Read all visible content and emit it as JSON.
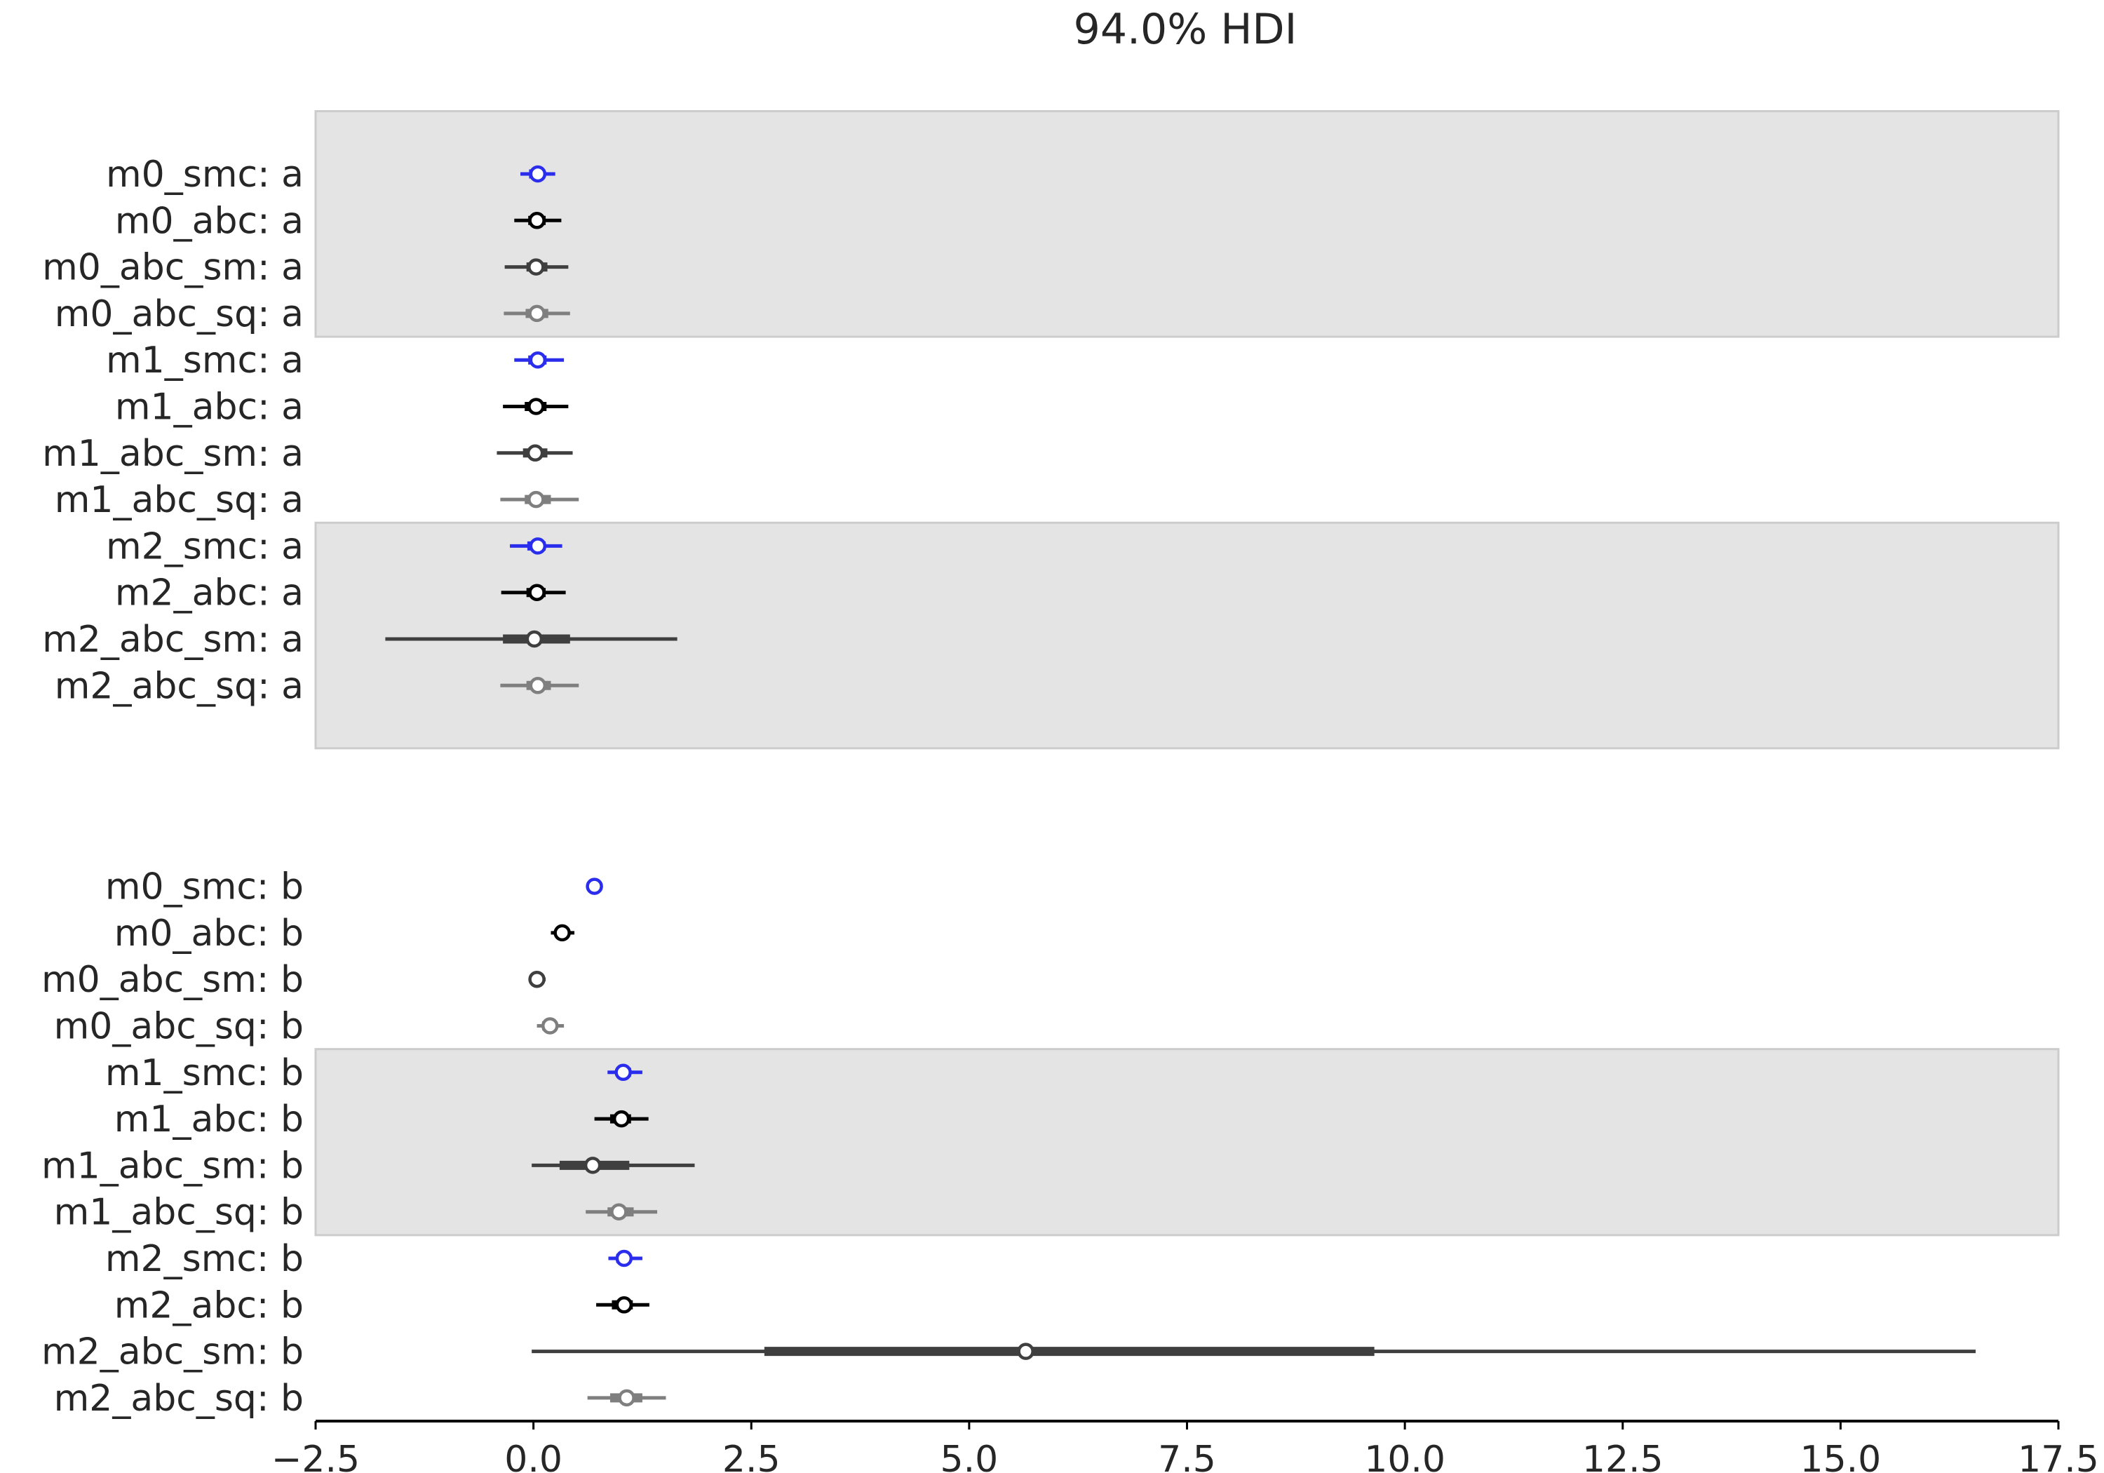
{
  "chart_data": {
    "type": "forest",
    "title": "94.0% HDI",
    "xlim": [
      -2.5,
      17.5
    ],
    "xticks": [
      -2.5,
      0.0,
      2.5,
      5.0,
      7.5,
      10.0,
      12.5,
      15.0,
      17.5
    ],
    "xtick_labels": [
      "−2.5",
      "0.0",
      "2.5",
      "5.0",
      "7.5",
      "10.0",
      "12.5",
      "15.0",
      "17.5"
    ],
    "colors": {
      "smc": "#2a2eec",
      "abc": "#000000",
      "abc_sm": "#3f3f3f",
      "abc_sq": "#7f7f7f",
      "band": "#e4e4e4",
      "band_edge": "#cccccc",
      "axis": "#000000"
    },
    "groups": [
      {
        "parameter": "a",
        "blocks": [
          {
            "shaded": true,
            "rows": [
              {
                "label": "m0_smc: a",
                "model": "smc",
                "median": 0.05,
                "hdi": [
                  -0.15,
                  0.25
                ],
                "iqr": [
                  -0.05,
                  0.12
                ]
              },
              {
                "label": "m0_abc: a",
                "model": "abc",
                "median": 0.04,
                "hdi": [
                  -0.22,
                  0.32
                ],
                "iqr": [
                  -0.06,
                  0.14
                ]
              },
              {
                "label": "m0_abc_sm: a",
                "model": "abc_sm",
                "median": 0.03,
                "hdi": [
                  -0.33,
                  0.4
                ],
                "iqr": [
                  -0.08,
                  0.16
                ]
              },
              {
                "label": "m0_abc_sq: a",
                "model": "abc_sq",
                "median": 0.04,
                "hdi": [
                  -0.34,
                  0.42
                ],
                "iqr": [
                  -0.09,
                  0.17
                ]
              }
            ]
          },
          {
            "shaded": false,
            "rows": [
              {
                "label": "m1_smc: a",
                "model": "smc",
                "median": 0.05,
                "hdi": [
                  -0.22,
                  0.35
                ],
                "iqr": [
                  -0.06,
                  0.15
                ]
              },
              {
                "label": "m1_abc: a",
                "model": "abc",
                "median": 0.03,
                "hdi": [
                  -0.35,
                  0.4
                ],
                "iqr": [
                  -0.1,
                  0.15
                ]
              },
              {
                "label": "m1_abc_sm: a",
                "model": "abc_sm",
                "median": 0.02,
                "hdi": [
                  -0.42,
                  0.45
                ],
                "iqr": [
                  -0.12,
                  0.16
                ]
              },
              {
                "label": "m1_abc_sq: a",
                "model": "abc_sq",
                "median": 0.03,
                "hdi": [
                  -0.38,
                  0.52
                ],
                "iqr": [
                  -0.1,
                  0.2
                ]
              }
            ]
          },
          {
            "shaded": true,
            "rows": [
              {
                "label": "m2_smc: a",
                "model": "smc",
                "median": 0.05,
                "hdi": [
                  -0.27,
                  0.33
                ],
                "iqr": [
                  -0.07,
                  0.14
                ]
              },
              {
                "label": "m2_abc: a",
                "model": "abc",
                "median": 0.04,
                "hdi": [
                  -0.37,
                  0.37
                ],
                "iqr": [
                  -0.08,
                  0.14
                ]
              },
              {
                "label": "m2_abc_sm: a",
                "model": "abc_sm",
                "median": 0.01,
                "hdi": [
                  -1.7,
                  1.65
                ],
                "iqr": [
                  -0.35,
                  0.42
                ]
              },
              {
                "label": "m2_abc_sq: a",
                "model": "abc_sq",
                "median": 0.05,
                "hdi": [
                  -0.38,
                  0.52
                ],
                "iqr": [
                  -0.08,
                  0.2
                ]
              }
            ]
          }
        ]
      },
      {
        "parameter": "b",
        "blocks": [
          {
            "shaded": false,
            "rows": [
              {
                "label": "m0_smc: b",
                "model": "smc",
                "median": 0.7,
                "hdi": [
                  0.65,
                  0.75
                ],
                "iqr": [
                  0.68,
                  0.72
                ]
              },
              {
                "label": "m0_abc: b",
                "model": "abc",
                "median": 0.33,
                "hdi": [
                  0.2,
                  0.47
                ],
                "iqr": [
                  0.27,
                  0.39
                ]
              },
              {
                "label": "m0_abc_sm: b",
                "model": "abc_sm",
                "median": 0.04,
                "hdi": [
                  -0.02,
                  0.14
                ],
                "iqr": [
                  0.01,
                  0.08
                ]
              },
              {
                "label": "m0_abc_sq: b",
                "model": "abc_sq",
                "median": 0.19,
                "hdi": [
                  0.04,
                  0.35
                ],
                "iqr": [
                  0.1,
                  0.27
                ]
              }
            ]
          },
          {
            "shaded": true,
            "rows": [
              {
                "label": "m1_smc: b",
                "model": "smc",
                "median": 1.03,
                "hdi": [
                  0.85,
                  1.25
                ],
                "iqr": [
                  0.95,
                  1.12
                ]
              },
              {
                "label": "m1_abc: b",
                "model": "abc",
                "median": 1.01,
                "hdi": [
                  0.7,
                  1.32
                ],
                "iqr": [
                  0.88,
                  1.12
                ]
              },
              {
                "label": "m1_abc_sm: b",
                "model": "abc_sm",
                "median": 0.68,
                "hdi": [
                  -0.02,
                  1.85
                ],
                "iqr": [
                  0.3,
                  1.1
                ]
              },
              {
                "label": "m1_abc_sq: b",
                "model": "abc_sq",
                "median": 0.98,
                "hdi": [
                  0.6,
                  1.42
                ],
                "iqr": [
                  0.85,
                  1.15
                ]
              }
            ]
          },
          {
            "shaded": false,
            "rows": [
              {
                "label": "m2_smc: b",
                "model": "smc",
                "median": 1.04,
                "hdi": [
                  0.86,
                  1.25
                ],
                "iqr": [
                  0.95,
                  1.12
                ]
              },
              {
                "label": "m2_abc: b",
                "model": "abc",
                "median": 1.04,
                "hdi": [
                  0.72,
                  1.33
                ],
                "iqr": [
                  0.9,
                  1.14
                ]
              },
              {
                "label": "m2_abc_sm: b",
                "model": "abc_sm",
                "median": 5.65,
                "hdi": [
                  -0.02,
                  16.55
                ],
                "iqr": [
                  2.65,
                  9.65
                ]
              },
              {
                "label": "m2_abc_sq: b",
                "model": "abc_sq",
                "median": 1.07,
                "hdi": [
                  0.62,
                  1.52
                ],
                "iqr": [
                  0.88,
                  1.25
                ]
              }
            ]
          }
        ]
      }
    ]
  }
}
